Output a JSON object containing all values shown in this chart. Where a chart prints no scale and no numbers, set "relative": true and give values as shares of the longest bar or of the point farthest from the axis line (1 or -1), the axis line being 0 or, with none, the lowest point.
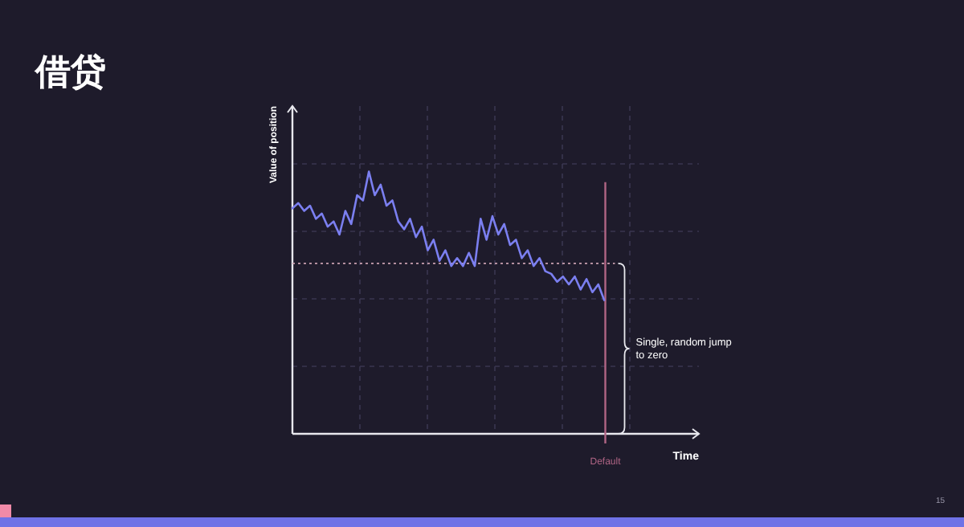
{
  "chart_data": {
    "type": "line",
    "title": "借贷",
    "ylabel": "Value of position",
    "relative": true,
    "categories": [
      null,
      null,
      null,
      null,
      null,
      null,
      null,
      null,
      null,
      null,
      null,
      null,
      null,
      null,
      null,
      null,
      null,
      null,
      null,
      null,
      null,
      null,
      null,
      null,
      null,
      null,
      null,
      null,
      null,
      null,
      null,
      null,
      null,
      null,
      null,
      null,
      null,
      null,
      null,
      null,
      null,
      null,
      null,
      null,
      null,
      null,
      null,
      null,
      null,
      null,
      null,
      null,
      null,
      null
    ],
    "grid": true,
    "marker": "none",
    "line_style": "solid",
    "series": [
      {
        "color": "#7b7ff0",
        "values": [
          0.86,
          0.88,
          0.85,
          0.87,
          0.82,
          0.84,
          0.79,
          0.81,
          0.76,
          0.85,
          0.8,
          0.91,
          0.89,
          1.0,
          0.91,
          0.95,
          0.87,
          0.89,
          0.81,
          0.78,
          0.82,
          0.75,
          0.79,
          0.7,
          0.74,
          0.66,
          0.7,
          0.64,
          0.67,
          0.64,
          0.69,
          0.64,
          0.82,
          0.74,
          0.83,
          0.76,
          0.8,
          0.72,
          0.74,
          0.67,
          0.7,
          0.64,
          0.67,
          0.62,
          0.61,
          0.58,
          0.6,
          0.57,
          0.6,
          0.55,
          0.59,
          0.54,
          0.57,
          0.51
        ]
      }
    ],
    "ref_lines": [
      {
        "axis": "y",
        "value": 0.65,
        "color": "#c9a0b0",
        "line_style": "dotted"
      }
    ],
    "annotations": [
      "Single, random jump to zero",
      "15",
      "Default",
      "Time"
    ]
  }
}
